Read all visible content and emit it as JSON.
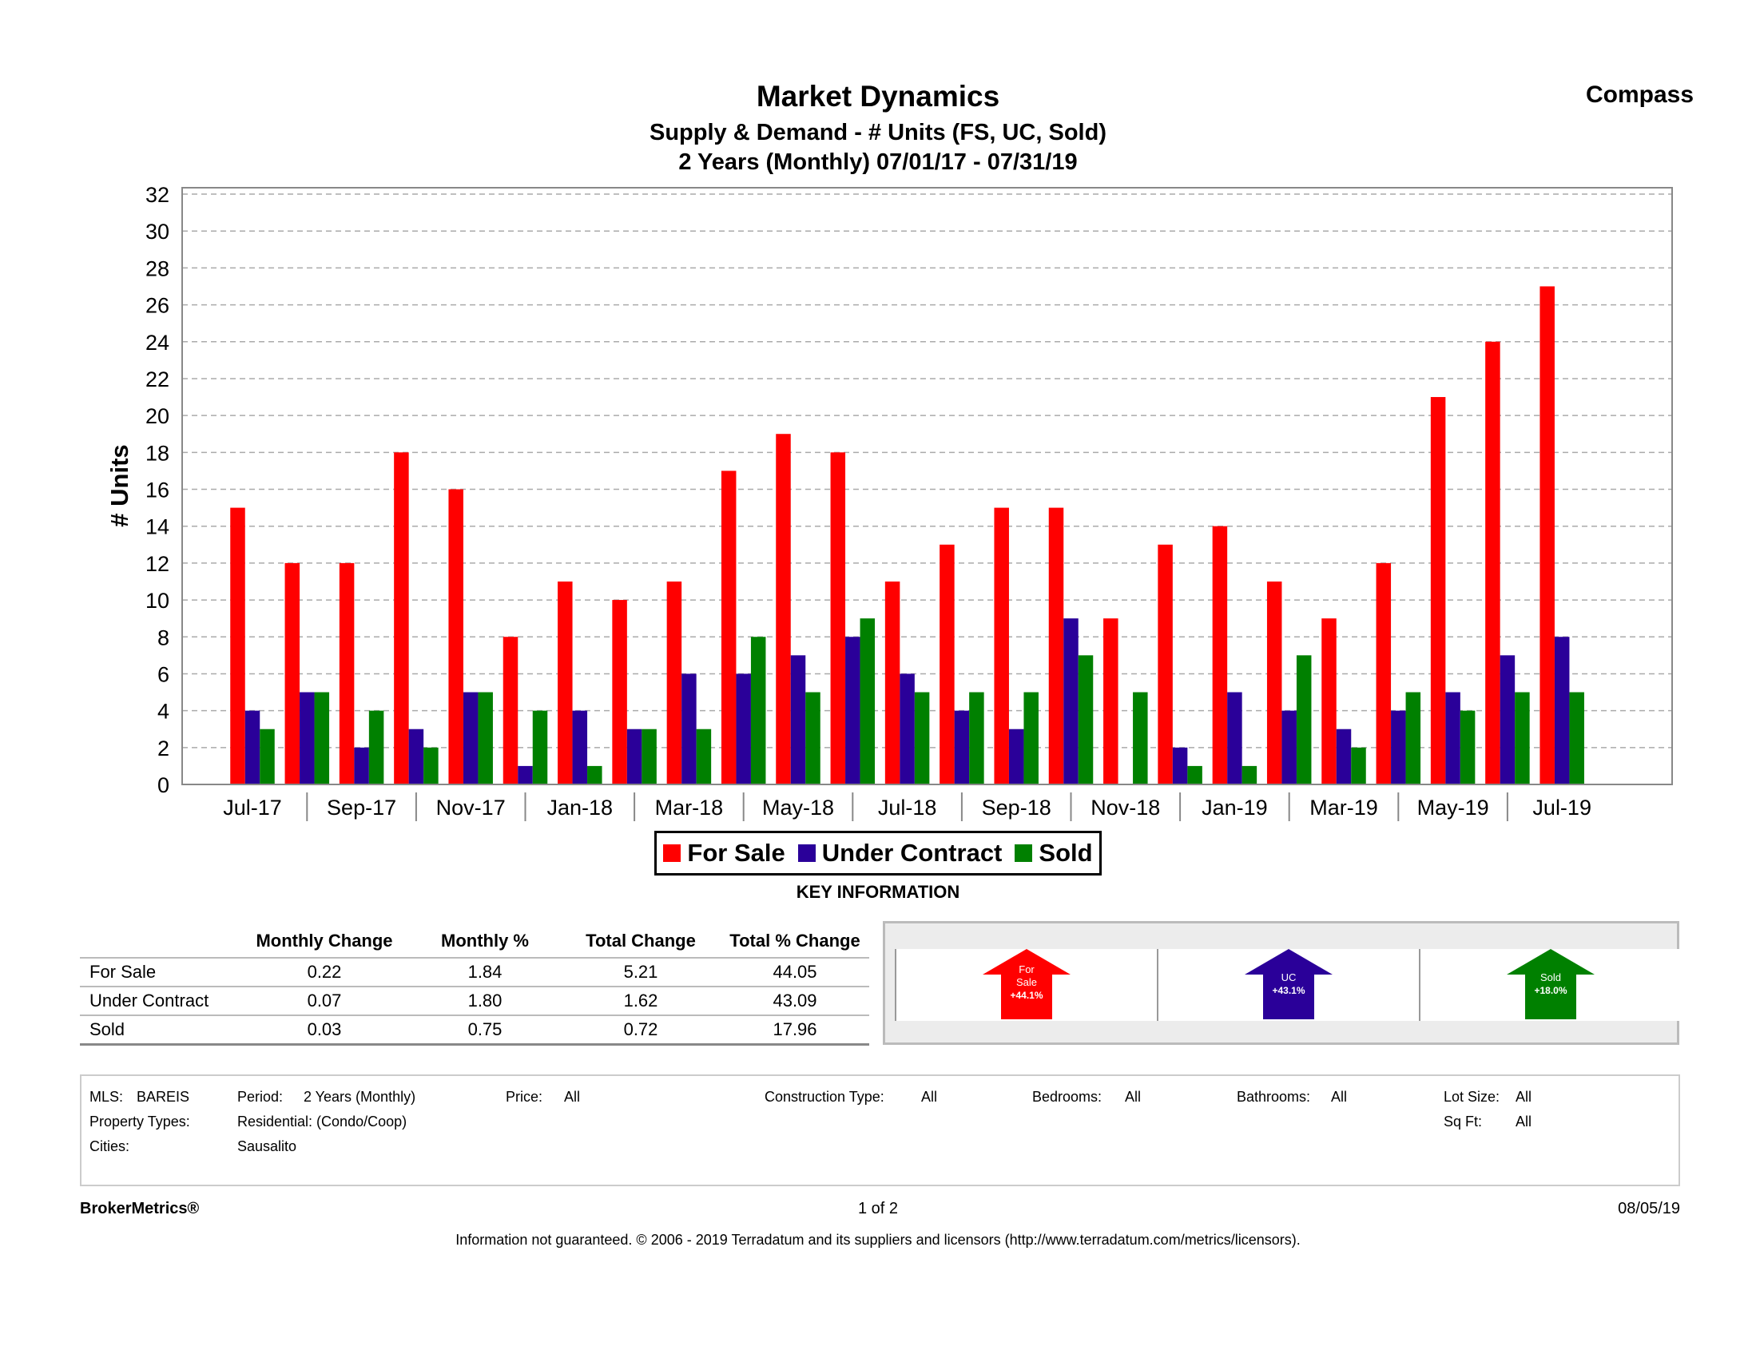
{
  "header": {
    "title": "Market Dynamics",
    "subtitle1": "Supply & Demand - # Units (FS, UC, Sold)",
    "subtitle2": "2 Years (Monthly) 07/01/17 - 07/31/19",
    "brand": "Compass"
  },
  "chart_data": {
    "type": "bar",
    "ylabel": "# Units",
    "ylim": [
      0,
      32
    ],
    "yticks": [
      0,
      2,
      4,
      6,
      8,
      10,
      12,
      14,
      16,
      18,
      20,
      22,
      24,
      26,
      28,
      30,
      32
    ],
    "grid": true,
    "categories": [
      "Jul-17",
      "Aug-17",
      "Sep-17",
      "Oct-17",
      "Nov-17",
      "Dec-17",
      "Jan-18",
      "Feb-18",
      "Mar-18",
      "Apr-18",
      "May-18",
      "Jun-18",
      "Jul-18",
      "Aug-18",
      "Sep-18",
      "Oct-18",
      "Nov-18",
      "Dec-18",
      "Jan-19",
      "Feb-19",
      "Mar-19",
      "Apr-19",
      "May-19",
      "Jun-19",
      "Jul-19"
    ],
    "xtick_labels": [
      "Jul-17",
      "Sep-17",
      "Nov-17",
      "Jan-18",
      "Mar-18",
      "May-18",
      "Jul-18",
      "Sep-18",
      "Nov-18",
      "Jan-19",
      "Mar-19",
      "May-19",
      "Jul-19"
    ],
    "series": [
      {
        "name": "For Sale",
        "color": "#ff0000",
        "values": [
          15,
          12,
          12,
          18,
          16,
          8,
          11,
          10,
          11,
          17,
          19,
          18,
          11,
          13,
          15,
          15,
          9,
          13,
          14,
          11,
          9,
          12,
          21,
          24,
          27
        ]
      },
      {
        "name": "Under Contract",
        "color": "#2a0099",
        "values": [
          4,
          5,
          2,
          3,
          5,
          1,
          4,
          3,
          6,
          6,
          7,
          8,
          6,
          4,
          3,
          9,
          0,
          2,
          5,
          4,
          3,
          4,
          5,
          7,
          8
        ]
      },
      {
        "name": "Sold",
        "color": "#008000",
        "values": [
          3,
          5,
          4,
          2,
          5,
          4,
          1,
          3,
          3,
          8,
          5,
          9,
          5,
          5,
          5,
          7,
          5,
          1,
          1,
          7,
          2,
          5,
          4,
          5,
          5
        ]
      }
    ],
    "legend_position": "bottom"
  },
  "key_information": {
    "heading": "KEY INFORMATION",
    "columns": [
      "",
      "Monthly Change",
      "Monthly %",
      "Total Change",
      "Total % Change"
    ],
    "rows": [
      [
        "For Sale",
        "0.22",
        "1.84",
        "5.21",
        "44.05"
      ],
      [
        "Under Contract",
        "0.07",
        "1.80",
        "1.62",
        "43.09"
      ],
      [
        "Sold",
        "0.03",
        "0.75",
        "0.72",
        "17.96"
      ]
    ],
    "arrows": [
      {
        "lines": [
          "For",
          "Sale",
          "+44.1%"
        ],
        "color": "#ff0000",
        "direction": "up"
      },
      {
        "lines": [
          "UC",
          "+43.1%"
        ],
        "color": "#2a0099",
        "direction": "up"
      },
      {
        "lines": [
          "Sold",
          "+18.0%"
        ],
        "color": "#008000",
        "direction": "up"
      }
    ]
  },
  "criteria": {
    "mls_label": "MLS:",
    "mls_value": "BAREIS",
    "period_label": "Period:",
    "period_value": "2 Years (Monthly)",
    "price_label": "Price:",
    "price_value": "All",
    "construction_label": "Construction Type:",
    "construction_value": "All",
    "bedrooms_label": "Bedrooms:",
    "bedrooms_value": "All",
    "bathrooms_label": "Bathrooms:",
    "bathrooms_value": "All",
    "lotsize_label": "Lot Size:",
    "lotsize_value": "All",
    "proptypes_label": "Property Types:",
    "proptypes_value": "Residential: (Condo/Coop)",
    "sqft_label": "Sq Ft:",
    "sqft_value": "All",
    "cities_label": "Cities:",
    "cities_value": "Sausalito"
  },
  "footer": {
    "left": "BrokerMetrics®",
    "page": "1 of 2",
    "date": "08/05/19",
    "disclaimer": "Information not guaranteed.  © 2006 - 2019 Terradatum and its suppliers and licensors (http://www.terradatum.com/metrics/licensors)."
  }
}
